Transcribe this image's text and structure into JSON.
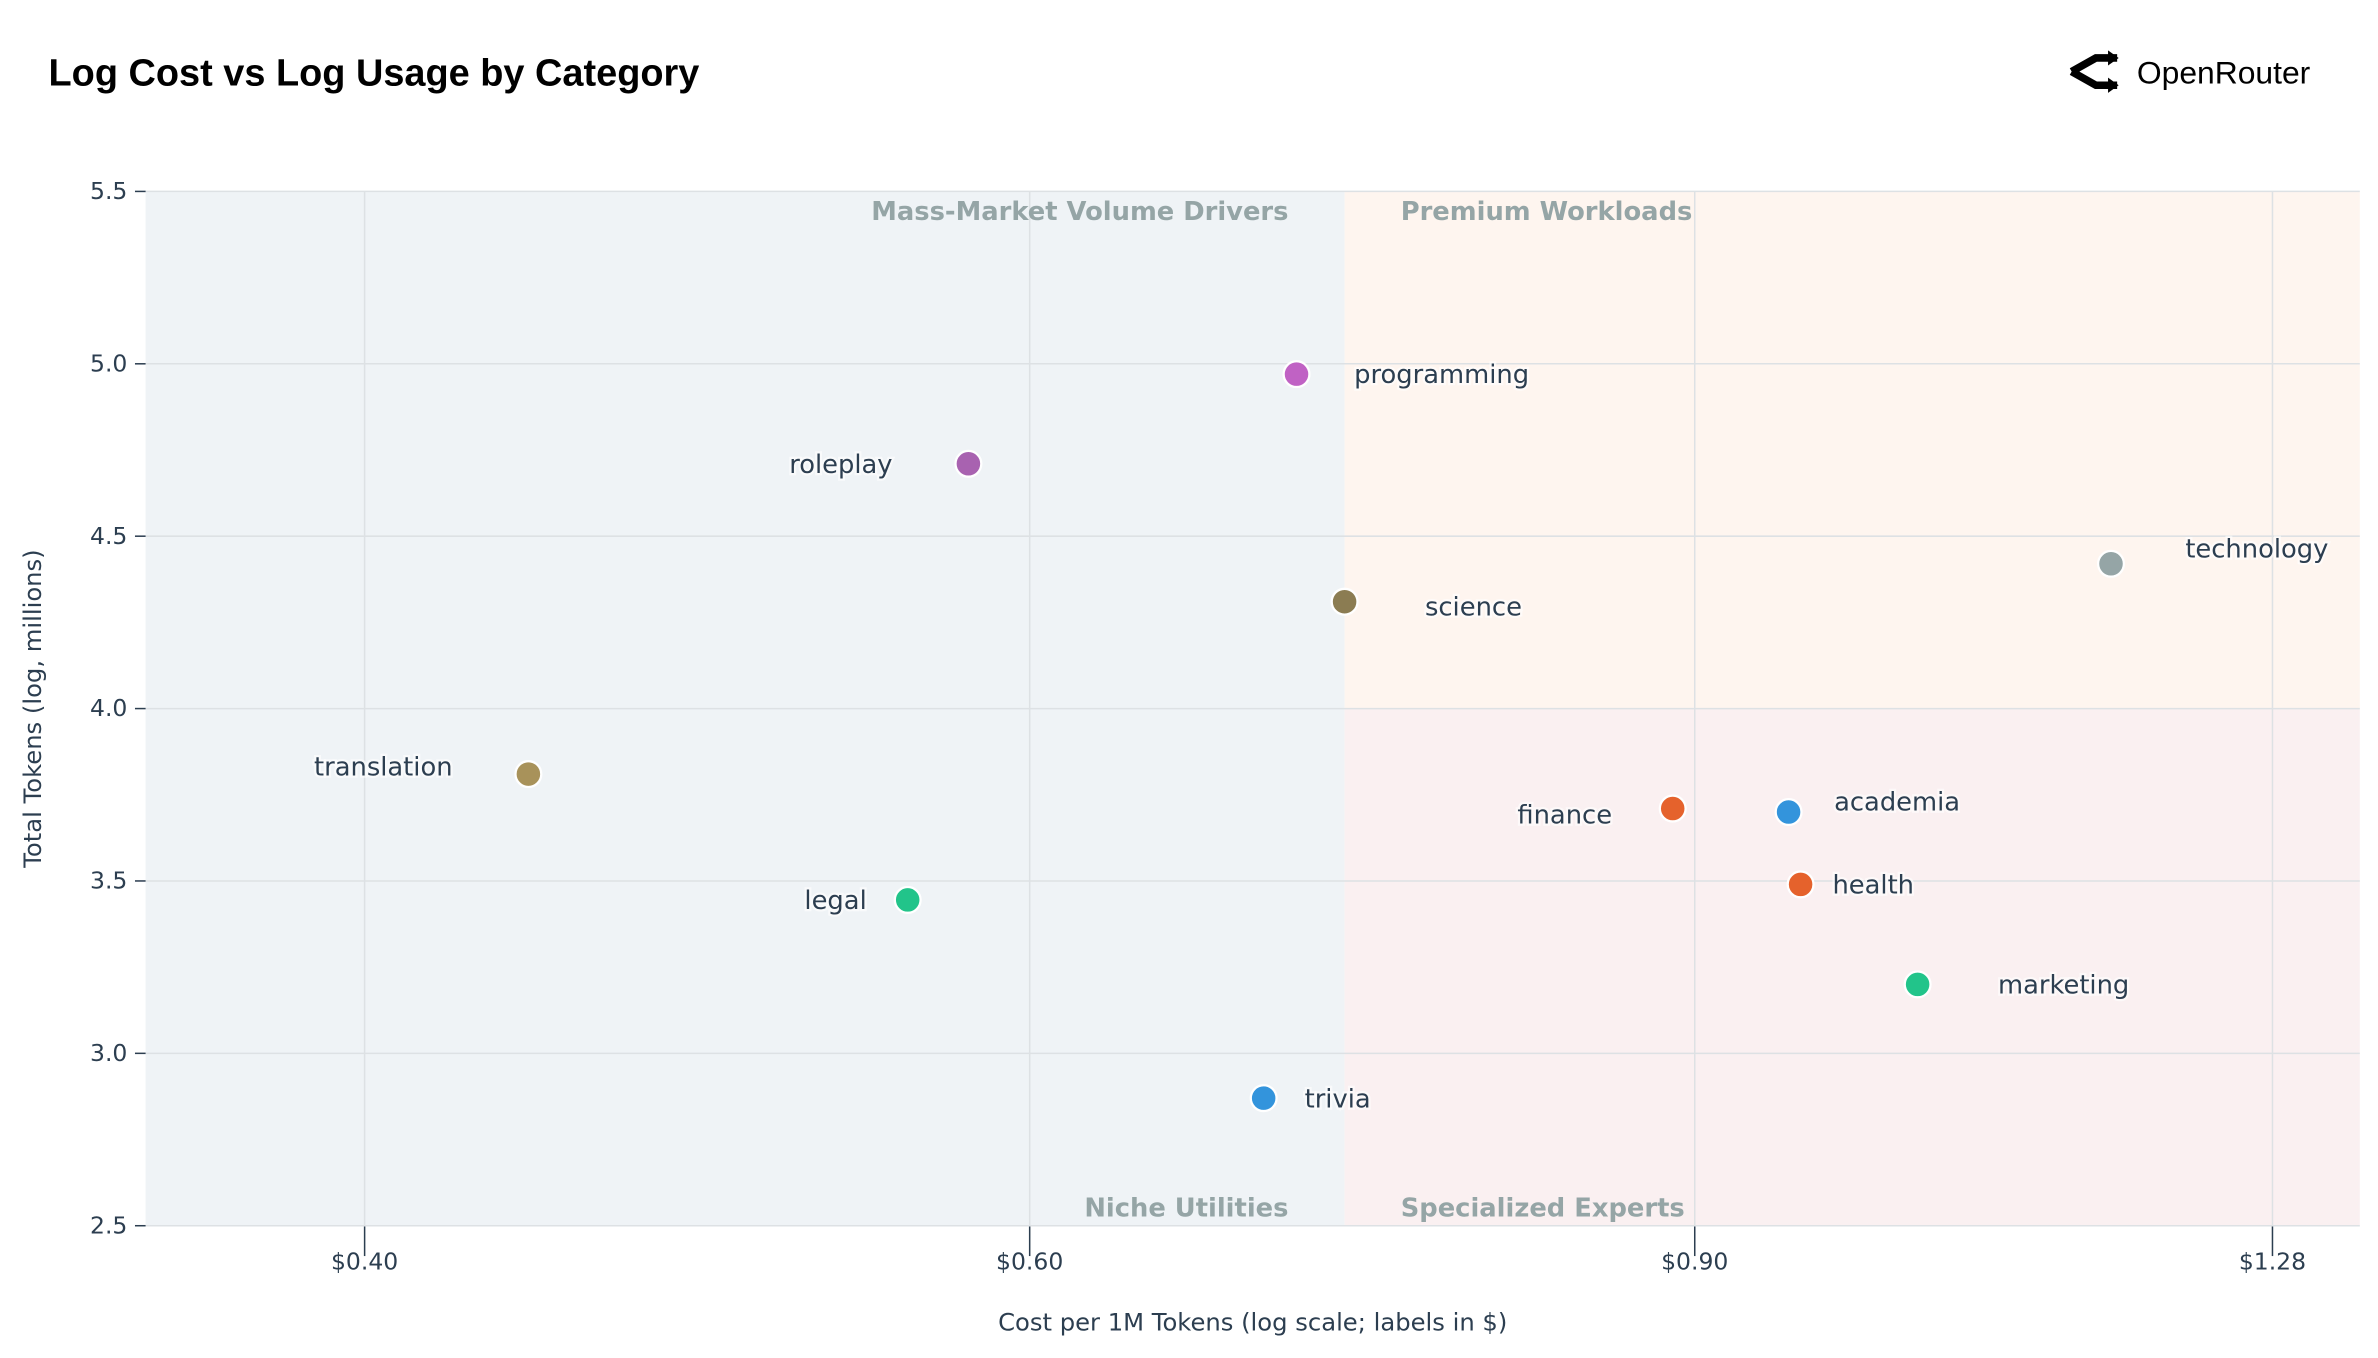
{
  "header": {
    "title": "Log Cost vs Log Usage by Category",
    "logo_text": "OpenRouter",
    "logo_icon": "openrouter-logo-icon"
  },
  "chart_data": {
    "type": "scatter",
    "title": "Log Cost vs Log Usage by Category",
    "xlabel": "Cost per 1M Tokens (log scale; labels in $)",
    "ylabel": "Total Tokens (log, millions)",
    "x_scale": "log",
    "xlim": [
      0.35,
      1.35
    ],
    "ylim": [
      2.5,
      5.5
    ],
    "x_ticks": [
      0.4,
      0.6,
      0.9,
      1.28
    ],
    "x_tick_labels": [
      "$0.40",
      "$0.60",
      "$0.90",
      "$1.28"
    ],
    "y_ticks": [
      2.5,
      3.0,
      3.5,
      4.0,
      4.5,
      5.0,
      5.5
    ],
    "y_tick_labels": [
      "2.5",
      "3.0",
      "3.5",
      "4.0",
      "4.5",
      "5.0",
      "5.5"
    ],
    "grid": true,
    "quadrant_split": {
      "x": 0.727,
      "y": 4.0
    },
    "quadrants": [
      {
        "label": "Mass-Market Volume Drivers",
        "region": "top-left",
        "color": "#eff3f6"
      },
      {
        "label": "Premium Workloads",
        "region": "top-right",
        "color": "#fef5ef"
      },
      {
        "label": "Niche Utilities",
        "region": "bottom-left",
        "color": "#eff3f6"
      },
      {
        "label": "Specialized Experts",
        "region": "bottom-right",
        "color": "#faf0f1"
      }
    ],
    "points": [
      {
        "label": "programming",
        "x": 0.706,
        "y": 4.97,
        "color": "#c062c4"
      },
      {
        "label": "roleplay",
        "x": 0.578,
        "y": 4.71,
        "color": "#a862b0"
      },
      {
        "label": "science",
        "x": 0.727,
        "y": 4.31,
        "color": "#8b7c52"
      },
      {
        "label": "technology",
        "x": 1.16,
        "y": 4.42,
        "color": "#95a5a6"
      },
      {
        "label": "translation",
        "x": 0.442,
        "y": 3.81,
        "color": "#a8925a"
      },
      {
        "label": "legal",
        "x": 0.557,
        "y": 3.445,
        "color": "#22c48a"
      },
      {
        "label": "finance",
        "x": 0.888,
        "y": 3.71,
        "color": "#e5622c"
      },
      {
        "label": "academia",
        "x": 0.953,
        "y": 3.7,
        "color": "#3394dc"
      },
      {
        "label": "health",
        "x": 0.96,
        "y": 3.49,
        "color": "#e5622c"
      },
      {
        "label": "marketing",
        "x": 1.031,
        "y": 3.2,
        "color": "#22c48a"
      },
      {
        "label": "trivia",
        "x": 0.692,
        "y": 2.87,
        "color": "#3394dc"
      }
    ]
  }
}
